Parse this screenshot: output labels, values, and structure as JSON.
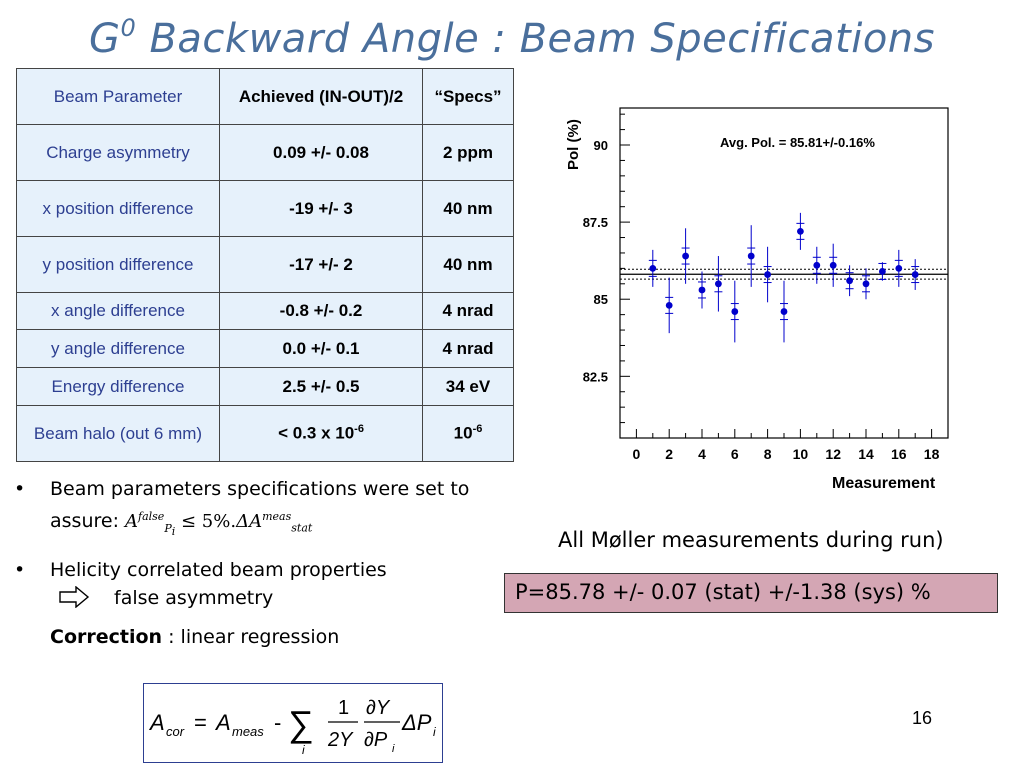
{
  "title": {
    "main": "G",
    "sup": "0",
    "rest": " Backward Angle : Beam Specifications"
  },
  "table": {
    "headers": [
      "Beam Parameter",
      "Achieved (IN-OUT)/2",
      "“Specs”"
    ],
    "rows": [
      {
        "param": "Charge asymmetry",
        "achieved": "0.09 +/- 0.08",
        "spec": "2 ppm"
      },
      {
        "param": "x position difference",
        "achieved": "-19 +/- 3",
        "spec": "40 nm"
      },
      {
        "param": "y position difference",
        "achieved": "-17 +/- 2",
        "spec": "40 nm"
      },
      {
        "param": "x angle difference",
        "achieved": "-0.8 +/- 0.2",
        "spec": "4 nrad"
      },
      {
        "param": "y angle difference",
        "achieved": "0.0 +/- 0.1",
        "spec": "4 nrad"
      },
      {
        "param": "Energy difference",
        "achieved": "2.5 +/- 0.5",
        "spec": "34 eV"
      },
      {
        "param": "Beam halo (out 6 mm)",
        "achieved": "< 0.3 x 10",
        "achieved_sup": "-6",
        "spec": "10",
        "spec_sup": "-6"
      }
    ]
  },
  "bullets": {
    "b1_text": "Beam parameters specifications were set to assure:",
    "b1_formula": {
      "A": "A",
      "false": "false",
      "Pi": "P",
      "i": "i",
      "rel": "≤ 5%.",
      "delta": "ΔA",
      "meas": "meas",
      "stat": "stat"
    },
    "b2_text": "Helicity correlated beam properties",
    "arrow_text": "false asymmetry",
    "correction_bold": "Correction",
    "correction_rest": " : linear regression"
  },
  "formula": {
    "A": "A",
    "cor": "cor",
    "eq": "=",
    "meas": "meas",
    "minus": "-",
    "sigma": "∑",
    "i": "i",
    "one": "1",
    "twoY": "2Y",
    "dY": "∂Y",
    "dP": "∂P",
    "dP_sub": "i",
    "deltaP": "ΔP",
    "deltaP_sub": "i"
  },
  "caption": "All Møller measurements during run)",
  "result": "P=85.78 +/- 0.07 (stat) +/-1.38 (sys) %",
  "page_number": "16",
  "colors": {
    "title": "#4a6f9c",
    "table_bg": "#e6f1fb",
    "param_text": "#2d3f91",
    "result_bg": "#d4a6b4",
    "points": "#0000cc"
  },
  "chart_data": {
    "type": "scatter",
    "title": "",
    "xlabel": "Measurement",
    "ylabel": "Pol (%)",
    "annotation": "Avg. Pol. = 85.81+/-0.16%",
    "xlim": [
      -1,
      19
    ],
    "ylim": [
      80.5,
      91.2
    ],
    "xticks": [
      0,
      2,
      4,
      6,
      8,
      10,
      12,
      14,
      16,
      18
    ],
    "xtick_labels": [
      "0",
      "2",
      "4",
      "6",
      "8",
      "10",
      "12",
      "14",
      "16",
      "18"
    ],
    "yticks": [
      82.5,
      85,
      87.5,
      90
    ],
    "ytick_labels": [
      "82.5",
      "85",
      "87.5",
      "90"
    ],
    "grid": false,
    "avg": 85.81,
    "avg_err": 0.16,
    "points": [
      {
        "x": 1,
        "y": 86.0,
        "err": 0.6
      },
      {
        "x": 2,
        "y": 84.8,
        "err": 0.9
      },
      {
        "x": 3,
        "y": 86.4,
        "err": 0.9
      },
      {
        "x": 4,
        "y": 85.3,
        "err": 0.6
      },
      {
        "x": 5,
        "y": 85.5,
        "err": 0.9
      },
      {
        "x": 6,
        "y": 84.6,
        "err": 1.0
      },
      {
        "x": 7,
        "y": 86.4,
        "err": 1.0
      },
      {
        "x": 8,
        "y": 85.8,
        "err": 0.9
      },
      {
        "x": 9,
        "y": 84.6,
        "err": 1.0
      },
      {
        "x": 10,
        "y": 87.2,
        "err": 0.6
      },
      {
        "x": 11,
        "y": 86.1,
        "err": 0.6
      },
      {
        "x": 12,
        "y": 86.1,
        "err": 0.7
      },
      {
        "x": 13,
        "y": 85.6,
        "err": 0.5
      },
      {
        "x": 14,
        "y": 85.5,
        "err": 0.5
      },
      {
        "x": 15,
        "y": 85.9,
        "err": 0.3
      },
      {
        "x": 16,
        "y": 86.0,
        "err": 0.6
      },
      {
        "x": 17,
        "y": 85.8,
        "err": 0.5
      }
    ]
  }
}
